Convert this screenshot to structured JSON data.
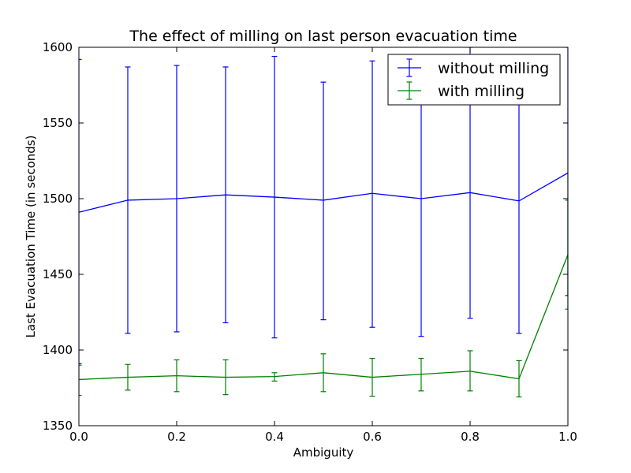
{
  "chart_data": {
    "type": "line",
    "title": "The effect of milling on last person evacuation time",
    "xlabel": "Ambiguity",
    "ylabel": "Last Evacuation Time (in seconds)",
    "xlim": [
      0.0,
      1.0
    ],
    "ylim": [
      1350,
      1600
    ],
    "xticks": [
      "0.0",
      "0.2",
      "0.4",
      "0.6",
      "0.8",
      "1.0"
    ],
    "yticks": [
      "1350",
      "1400",
      "1450",
      "1500",
      "1550",
      "1600"
    ],
    "grid": false,
    "legend_position": "top-right",
    "x": [
      0.0,
      0.1,
      0.2,
      0.3,
      0.4,
      0.5,
      0.6,
      0.7,
      0.8,
      0.9,
      1.0
    ],
    "series": [
      {
        "name": "without milling",
        "color": "#0000ff",
        "values": [
          1491,
          1499,
          1500,
          1502.5,
          1501,
          1499,
          1503.5,
          1500,
          1504,
          1498.5,
          1517
        ],
        "err_low": [
          1391,
          1411,
          1412,
          1418,
          1408,
          1420,
          1415,
          1409,
          1421,
          1411,
          1436
        ],
        "err_high": [
          1592,
          1587,
          1588,
          1587,
          1594,
          1577,
          1591,
          1592,
          1600,
          1586,
          1600
        ]
      },
      {
        "name": "with milling",
        "color": "#008000",
        "values": [
          1380.5,
          1382,
          1383,
          1382,
          1382.5,
          1385,
          1382,
          1384,
          1386,
          1381,
          1463
        ],
        "err_low": [
          1370,
          1373.5,
          1372.5,
          1370.5,
          1379.5,
          1372.5,
          1369.5,
          1373,
          1373,
          1369,
          1427
        ],
        "err_high": [
          1390,
          1390.5,
          1393.5,
          1393.5,
          1385,
          1397.5,
          1394.5,
          1394.5,
          1399.5,
          1393,
          1499
        ]
      }
    ]
  }
}
